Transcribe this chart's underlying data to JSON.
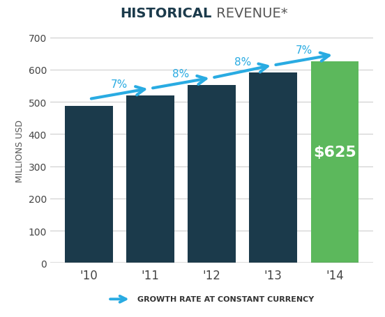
{
  "categories": [
    "'10",
    "'11",
    "'12",
    "'13",
    "'14"
  ],
  "values": [
    487,
    520,
    553,
    592,
    625
  ],
  "bar_colors": [
    "#1b3a4b",
    "#1b3a4b",
    "#1b3a4b",
    "#1b3a4b",
    "#5cb85c"
  ],
  "growth_rates": [
    "7%",
    "8%",
    "8%",
    "7%"
  ],
  "title_bold": "HISTORICAL",
  "title_regular": " REVENUE*",
  "ylabel": "MILLIONS USD",
  "ylim": [
    0,
    700
  ],
  "yticks": [
    0,
    100,
    200,
    300,
    400,
    500,
    600,
    700
  ],
  "arrow_color": "#29abe2",
  "grid_color": "#c8c8c8",
  "label_value": "$625",
  "label_color": "#ffffff",
  "legend_text": "GROWTH RATE AT CONSTANT CURRENCY",
  "background_color": "#ffffff",
  "title_color": "#1b3a4b",
  "regular_color": "#555555"
}
